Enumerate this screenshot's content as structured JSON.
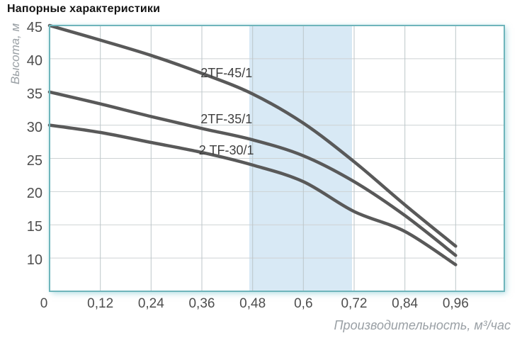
{
  "page": {
    "title": "Напорные характеристики"
  },
  "chart_data": {
    "type": "line",
    "title": "Напорные характеристики",
    "xlabel": "Производительность, м³/час",
    "ylabel": "Высота, м",
    "xlim": [
      0,
      1.075
    ],
    "ylim": [
      5,
      45
    ],
    "grid": true,
    "legend_position": "inline-labels",
    "x": [
      0,
      0.12,
      0.24,
      0.36,
      0.48,
      0.6,
      0.72,
      0.84,
      0.96
    ],
    "xticks": [
      {
        "value": 0,
        "label": "0"
      },
      {
        "value": 0.12,
        "label": "0,12"
      },
      {
        "value": 0.24,
        "label": "0,24"
      },
      {
        "value": 0.36,
        "label": "0,36"
      },
      {
        "value": 0.48,
        "label": "0,48"
      },
      {
        "value": 0.6,
        "label": "0,6"
      },
      {
        "value": 0.72,
        "label": "0,72"
      },
      {
        "value": 0.84,
        "label": "0,84"
      },
      {
        "value": 0.96,
        "label": "0,96"
      }
    ],
    "yticks": [
      {
        "value": 45,
        "label": "45"
      },
      {
        "value": 40,
        "label": "40"
      },
      {
        "value": 35,
        "label": "35"
      },
      {
        "value": 30,
        "label": "30"
      },
      {
        "value": 25,
        "label": "25"
      },
      {
        "value": 20,
        "label": "20"
      },
      {
        "value": 15,
        "label": "15"
      },
      {
        "value": 10,
        "label": "10"
      }
    ],
    "series": [
      {
        "name": "2TF-45/1",
        "values": [
          45,
          42.8,
          40.5,
          37.8,
          34.7,
          30.3,
          24.5,
          18.0,
          11.8
        ],
        "label_x": 0.357,
        "label_y": 37.2
      },
      {
        "name": "2TF-35/1",
        "values": [
          35,
          33.2,
          31.3,
          29.5,
          27.8,
          25.4,
          21.5,
          16.4,
          10.4
        ],
        "label_x": 0.357,
        "label_y": 30.3
      },
      {
        "name": "2 TF-30/1",
        "values": [
          30,
          28.9,
          27.4,
          25.9,
          24.0,
          21.5,
          17.0,
          14.0,
          9.0
        ],
        "label_x": 0.353,
        "label_y": 25.6
      }
    ],
    "highlight_band": {
      "x_from": 0.472,
      "x_to": 0.715
    },
    "style": {
      "band_color": "#d8e9f5",
      "curve_color": "#595959",
      "curve_width": 4.5,
      "grid_color_h": "#cdd2d4",
      "grid_color_v": "#bcc6ca",
      "border_color": "#6fb5bb",
      "tick_label_color": "#4e4e4e",
      "axis_title_color": "#9aa0a5"
    }
  }
}
